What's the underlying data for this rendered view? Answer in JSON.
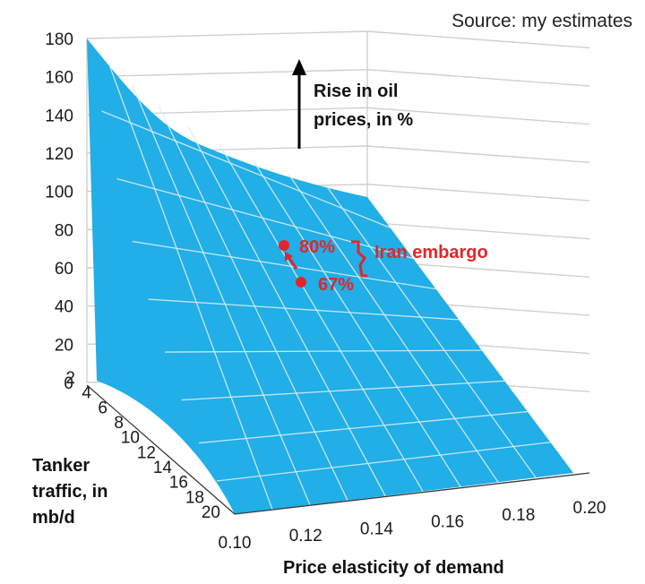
{
  "chart_data": {
    "type": "surface3d",
    "source": "Source: my estimates",
    "z_axis": {
      "label_lines": [
        "Rise in oil",
        "prices, in %"
      ],
      "ticks": [
        "0",
        "20",
        "40",
        "60",
        "80",
        "100",
        "120",
        "140",
        "160",
        "180"
      ],
      "range": [
        0,
        180
      ]
    },
    "y_axis": {
      "label_lines": [
        "Tanker",
        "traffic, in",
        "mb/d"
      ],
      "ticks": [
        "2",
        "4",
        "6",
        "8",
        "10",
        "12",
        "14",
        "16",
        "18",
        "20"
      ],
      "range": [
        2,
        20
      ]
    },
    "x_axis": {
      "label": "Price elasticity of demand",
      "ticks": [
        "0.10",
        "0.12",
        "0.14",
        "0.16",
        "0.18",
        "0.20"
      ],
      "range": [
        0.1,
        0.2
      ]
    },
    "surface_color": "#22aee6",
    "mesh_color": "#d6ecf7",
    "surface_corners": [
      {
        "elasticity": 0.1,
        "traffic": 2,
        "rise": 180
      },
      {
        "elasticity": 0.2,
        "traffic": 2,
        "rise": 88
      },
      {
        "elasticity": 0.2,
        "traffic": 20,
        "rise": 0
      },
      {
        "elasticity": 0.1,
        "traffic": 20,
        "rise": 0
      }
    ],
    "annotations": {
      "color": "#e0262a",
      "points": [
        {
          "label": "80%",
          "value": 80
        },
        {
          "label": "67%",
          "value": 67
        }
      ],
      "bracket_label": "Iran embargo"
    }
  }
}
